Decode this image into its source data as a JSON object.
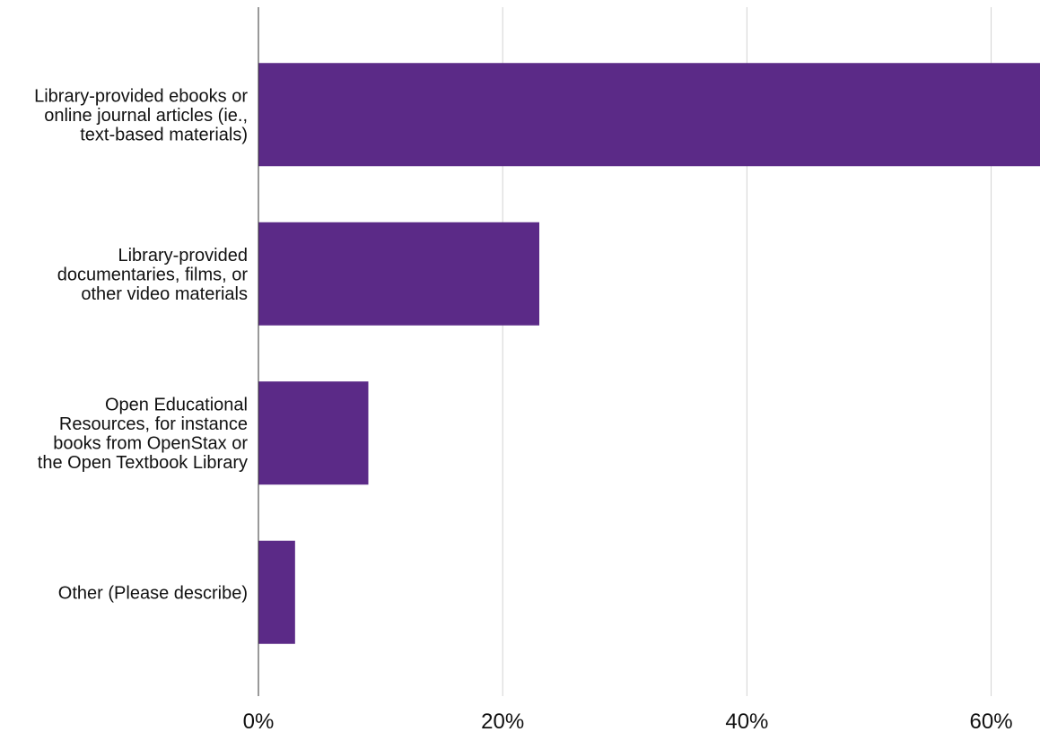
{
  "chart_data": {
    "type": "bar",
    "orientation": "horizontal",
    "title": "",
    "xlabel": "",
    "ylabel": "",
    "categories": [
      "Library-provided ebooks or online journal articles (ie., text-based materials)",
      "Library-provided documentaries, films, or other video materials",
      "Open Educational Resources, for instance books from OpenStax or the Open Textbook Library",
      "Other (Please describe)"
    ],
    "category_label_lines": [
      [
        "Library-provided ebooks or",
        "online journal articles (ie.,",
        "text-based materials)"
      ],
      [
        "Library-provided",
        "documentaries, films, or",
        "other video materials"
      ],
      [
        "Open Educational",
        "Resources, for instance",
        "books from OpenStax or",
        "the Open Textbook Library"
      ],
      [
        "Other (Please describe)"
      ]
    ],
    "values": [
      64,
      23,
      9,
      3
    ],
    "value_unit": "%",
    "xlim": [
      0,
      64
    ],
    "x_ticks": [
      0,
      20,
      40,
      60
    ],
    "x_tick_labels": [
      "0%",
      "20%",
      "40%",
      "60%"
    ],
    "grid": "vertical",
    "legend": "none",
    "colors": {
      "bar": "#5b2a87",
      "grid": "#d3d3d3",
      "axis": "#333333",
      "text": "#111111"
    }
  }
}
